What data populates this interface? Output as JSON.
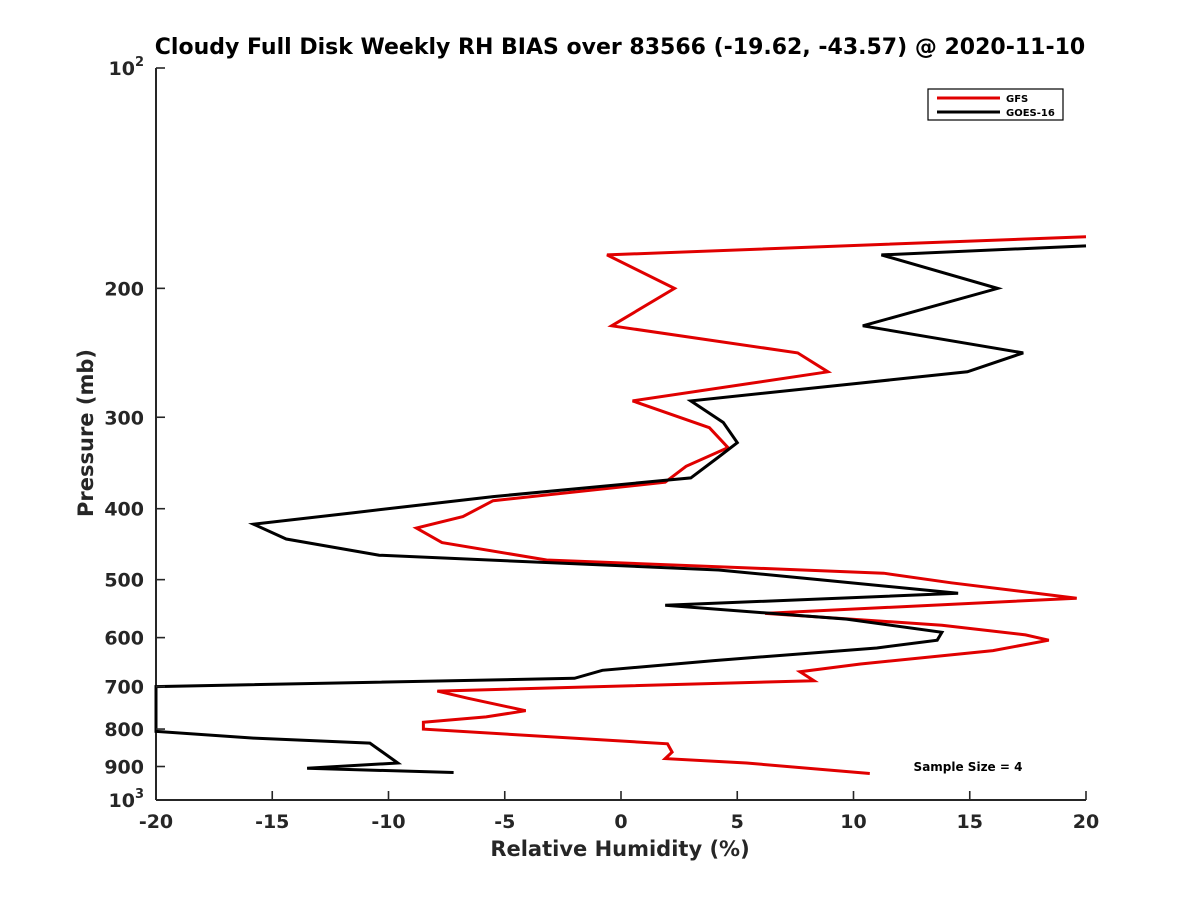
{
  "chart_data": {
    "type": "line",
    "title": "Cloudy Full Disk Weekly RH BIAS over 83566 (-19.62, -43.57) @ 2020-11-10",
    "xlabel": "Relative Humidity (%)",
    "ylabel": "Pressure (mb)",
    "xlim": [
      -20,
      20
    ],
    "ylim": [
      100,
      1000
    ],
    "y_scale": "log",
    "y_reversed": true,
    "grid": false,
    "legend_position": "top-right",
    "x_ticks": [
      -20,
      -15,
      -10,
      -5,
      0,
      5,
      10,
      15,
      20
    ],
    "y_ticks": [
      {
        "value": 100,
        "base": "10",
        "exp": "2"
      },
      {
        "value": 200,
        "label": "200"
      },
      {
        "value": 300,
        "label": "300"
      },
      {
        "value": 400,
        "label": "400"
      },
      {
        "value": 500,
        "label": "500"
      },
      {
        "value": 600,
        "label": "600"
      },
      {
        "value": 700,
        "label": "700"
      },
      {
        "value": 800,
        "label": "800"
      },
      {
        "value": 900,
        "label": "900"
      },
      {
        "value": 1000,
        "base": "10",
        "exp": "3"
      }
    ],
    "annotation": "Sample Size = 4",
    "series": [
      {
        "name": "GFS",
        "color": "#e00000",
        "points": [
          {
            "x": 20.0,
            "p": 170
          },
          {
            "x": -0.6,
            "p": 180
          },
          {
            "x": 2.3,
            "p": 200
          },
          {
            "x": -0.4,
            "p": 225
          },
          {
            "x": 7.6,
            "p": 245
          },
          {
            "x": 8.9,
            "p": 260
          },
          {
            "x": 0.5,
            "p": 285
          },
          {
            "x": 3.8,
            "p": 310
          },
          {
            "x": 4.6,
            "p": 330
          },
          {
            "x": 2.8,
            "p": 350
          },
          {
            "x": 1.9,
            "p": 368
          },
          {
            "x": -5.5,
            "p": 390
          },
          {
            "x": -6.8,
            "p": 410
          },
          {
            "x": -8.8,
            "p": 425
          },
          {
            "x": -7.7,
            "p": 445
          },
          {
            "x": -3.2,
            "p": 470
          },
          {
            "x": 11.3,
            "p": 490
          },
          {
            "x": 14.2,
            "p": 505
          },
          {
            "x": 19.6,
            "p": 530
          },
          {
            "x": 6.2,
            "p": 556
          },
          {
            "x": 13.8,
            "p": 577
          },
          {
            "x": 17.4,
            "p": 595
          },
          {
            "x": 18.4,
            "p": 605
          },
          {
            "x": 16.0,
            "p": 625
          },
          {
            "x": 10.3,
            "p": 652
          },
          {
            "x": 7.7,
            "p": 668
          },
          {
            "x": 8.3,
            "p": 687
          },
          {
            "x": -7.9,
            "p": 710
          },
          {
            "x": -6.6,
            "p": 726
          },
          {
            "x": -4.1,
            "p": 755
          },
          {
            "x": -5.8,
            "p": 770
          },
          {
            "x": -8.5,
            "p": 783
          },
          {
            "x": -8.5,
            "p": 800
          },
          {
            "x": 2.0,
            "p": 838
          },
          {
            "x": 2.2,
            "p": 860
          },
          {
            "x": 1.9,
            "p": 878
          },
          {
            "x": 5.4,
            "p": 890
          },
          {
            "x": 10.7,
            "p": 920
          }
        ]
      },
      {
        "name": "GOES-16",
        "color": "#000000",
        "points": [
          {
            "x": 20.0,
            "p": 175
          },
          {
            "x": 11.2,
            "p": 180
          },
          {
            "x": 16.2,
            "p": 200
          },
          {
            "x": 10.4,
            "p": 225
          },
          {
            "x": 17.3,
            "p": 245
          },
          {
            "x": 14.9,
            "p": 260
          },
          {
            "x": 3.0,
            "p": 285
          },
          {
            "x": 4.4,
            "p": 305
          },
          {
            "x": 5.0,
            "p": 325
          },
          {
            "x": 4.2,
            "p": 340
          },
          {
            "x": 3.0,
            "p": 363
          },
          {
            "x": -5.5,
            "p": 385
          },
          {
            "x": -11.5,
            "p": 405
          },
          {
            "x": -15.8,
            "p": 420
          },
          {
            "x": -14.4,
            "p": 440
          },
          {
            "x": -10.4,
            "p": 463
          },
          {
            "x": 4.2,
            "p": 485
          },
          {
            "x": 8.5,
            "p": 500
          },
          {
            "x": 14.5,
            "p": 522
          },
          {
            "x": 1.9,
            "p": 542
          },
          {
            "x": 9.7,
            "p": 566
          },
          {
            "x": 13.8,
            "p": 590
          },
          {
            "x": 13.6,
            "p": 605
          },
          {
            "x": 11.0,
            "p": 620
          },
          {
            "x": 4.0,
            "p": 645
          },
          {
            "x": -0.8,
            "p": 665
          },
          {
            "x": -2.0,
            "p": 682
          },
          {
            "x": -20.0,
            "p": 700
          },
          {
            "x": -20.0,
            "p": 806
          },
          {
            "x": -15.8,
            "p": 823
          },
          {
            "x": -10.8,
            "p": 836
          },
          {
            "x": -9.6,
            "p": 890
          },
          {
            "x": -13.5,
            "p": 905
          },
          {
            "x": -7.2,
            "p": 917
          }
        ]
      }
    ]
  }
}
